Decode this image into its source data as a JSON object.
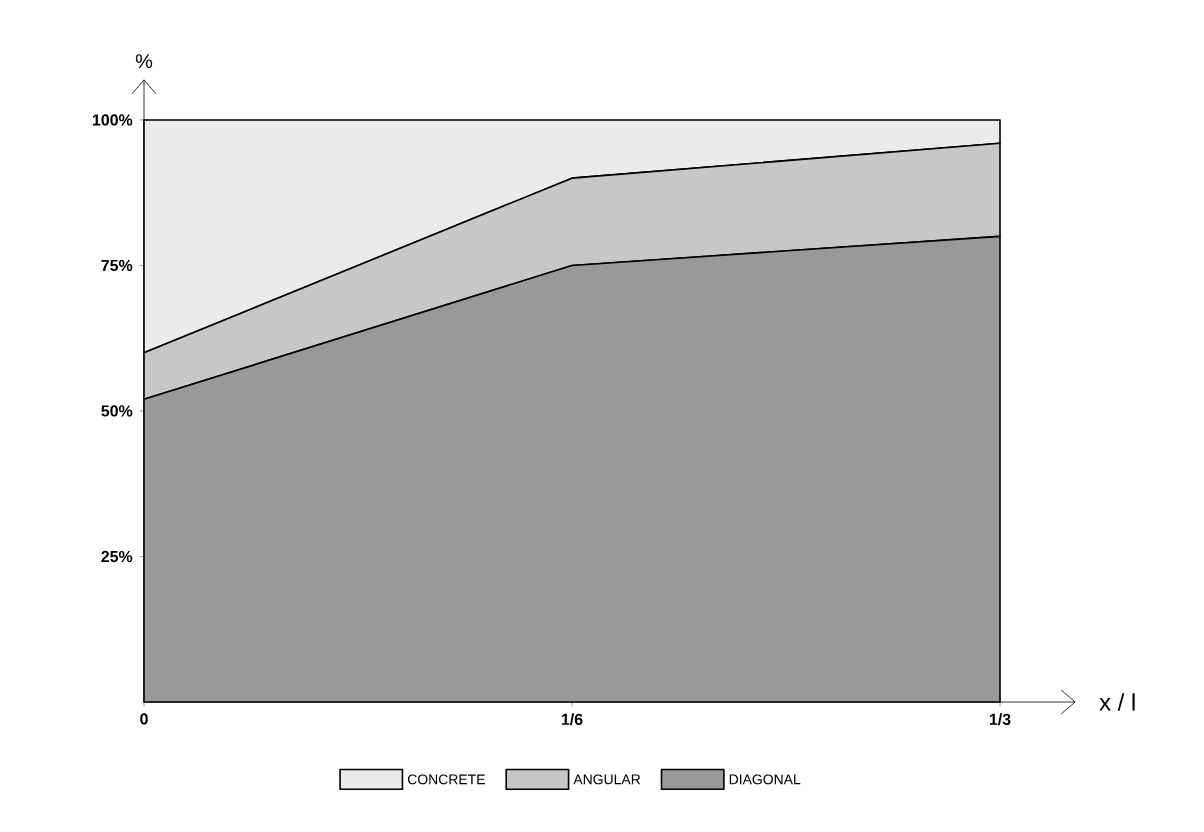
{
  "chart_data": {
    "type": "area",
    "stacked": true,
    "xlabel": "x / l",
    "ylabel": "%",
    "categories": [
      "0",
      "1/6",
      "1/3"
    ],
    "series": [
      {
        "name": "DIAGONAL",
        "color": "#000000",
        "values": [
          52,
          75,
          80
        ]
      },
      {
        "name": "ANGULAR",
        "color": "#000000",
        "values": [
          8,
          15,
          16
        ]
      },
      {
        "name": "CONCRETE",
        "color": "#000000",
        "values": [
          40,
          10,
          4
        ]
      }
    ],
    "ylim": [
      0,
      107
    ],
    "yticks": [
      {
        "value": 25,
        "label": "25%"
      },
      {
        "value": 50,
        "label": "50%"
      },
      {
        "value": 75,
        "label": "75%"
      },
      {
        "value": 100,
        "label": "100%"
      }
    ],
    "legend": "bottom"
  }
}
